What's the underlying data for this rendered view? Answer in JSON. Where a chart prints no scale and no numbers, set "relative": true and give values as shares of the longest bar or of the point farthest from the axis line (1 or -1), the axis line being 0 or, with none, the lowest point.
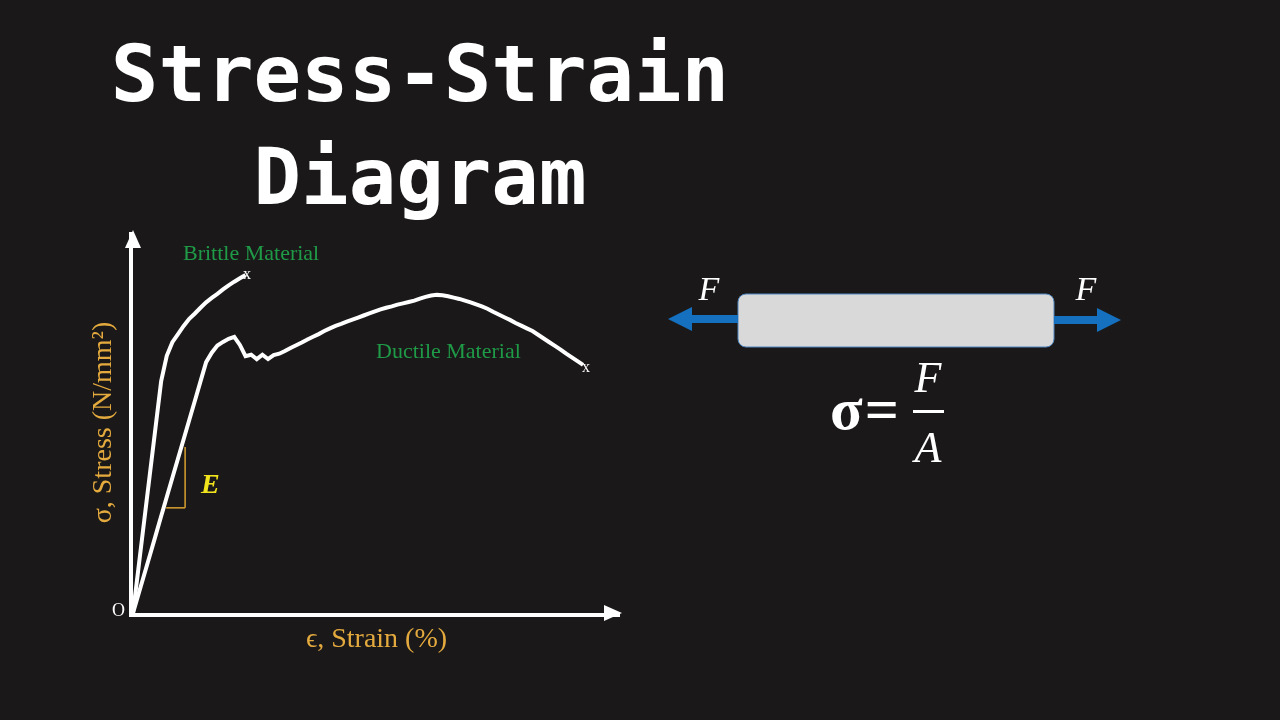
{
  "chart_data": {
    "type": "line",
    "title": "Stress-Strain Diagram",
    "xlabel": "ϵ, Strain (%)",
    "ylabel": "σ, Stress (N/mm²)",
    "relative": true,
    "categories": [
      null,
      null,
      null,
      null,
      null,
      null,
      null,
      null,
      null,
      null,
      null,
      null,
      null,
      null,
      null,
      null,
      null,
      null,
      null,
      null,
      null,
      null,
      null,
      null,
      null,
      null,
      null,
      null,
      null,
      null,
      null,
      null,
      null,
      null,
      null,
      null,
      null,
      null,
      null,
      null,
      null,
      null,
      null,
      null,
      null,
      null,
      null,
      null,
      null,
      null,
      null,
      null,
      null,
      null,
      null,
      null,
      null,
      null,
      null,
      null,
      null,
      null,
      null,
      null,
      null,
      null,
      null,
      null,
      null,
      null,
      null,
      null,
      null,
      null,
      null,
      null,
      null,
      null,
      null,
      null,
      null
    ],
    "series": [
      {
        "name": "Brittle Material",
        "color": "#ffffff",
        "values": [
          0,
          0.137,
          0.274,
          0.411,
          0.548,
          0.685,
          0.761,
          0.801,
          0.825,
          0.849,
          0.87,
          0.886,
          0.903,
          0.919,
          0.932,
          0.944,
          0.957,
          0.969,
          0.98,
          0.99,
          1,
          null,
          null,
          null,
          null,
          null,
          null,
          null,
          null,
          null,
          null,
          null,
          null,
          null,
          null,
          null,
          null,
          null,
          null,
          null,
          null,
          null,
          null,
          null,
          null,
          null,
          null,
          null,
          null,
          null,
          null,
          null,
          null,
          null,
          null,
          null,
          null,
          null,
          null,
          null,
          null,
          null,
          null,
          null,
          null,
          null,
          null,
          null,
          null,
          null,
          null,
          null,
          null,
          null,
          null,
          null,
          null,
          null,
          null,
          null,
          null
        ]
      },
      {
        "name": "Ductile Material",
        "color": "#ffffff",
        "values": [
          0,
          0.057,
          0.114,
          0.171,
          0.228,
          0.286,
          0.343,
          0.4,
          0.457,
          0.514,
          0.571,
          0.628,
          0.685,
          0.742,
          0.77,
          0.791,
          0.802,
          0.811,
          0.817,
          0.793,
          0.76,
          0.764,
          0.751,
          0.764,
          0.751,
          0.763,
          0.767,
          0.775,
          0.784,
          0.792,
          0.8,
          0.809,
          0.817,
          0.825,
          0.834,
          0.842,
          0.849,
          0.855,
          0.862,
          0.868,
          0.874,
          0.88,
          0.886,
          0.892,
          0.898,
          0.903,
          0.907,
          0.912,
          0.916,
          0.92,
          0.924,
          0.93,
          0.935,
          0.939,
          0.941,
          0.94,
          0.937,
          0.933,
          0.929,
          0.924,
          0.919,
          0.913,
          0.907,
          0.9,
          0.891,
          0.883,
          0.875,
          0.867,
          0.858,
          0.85,
          0.842,
          0.834,
          0.823,
          0.812,
          0.801,
          0.79,
          0.779,
          0.767,
          0.756,
          0.745,
          0.734
        ]
      }
    ],
    "annotations": [
      "O",
      "x",
      "x",
      "E",
      "F",
      "F",
      "σ=",
      "F",
      "A"
    ]
  }
}
